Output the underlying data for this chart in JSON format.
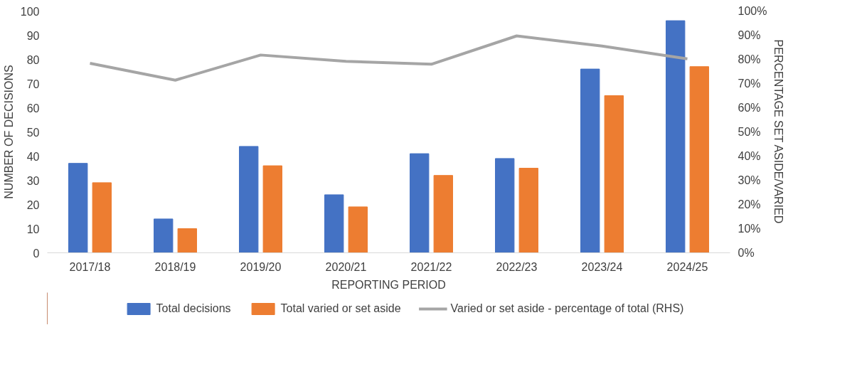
{
  "chart_data": {
    "type": "bar",
    "xlabel": "REPORTING PERIOD",
    "ylabel": "NUMBER OF DECISIONS",
    "y2label": "PERCENTAGE SET ASIDE/VARIED",
    "categories": [
      "2017/18",
      "2018/19",
      "2019/20",
      "2020/21",
      "2021/22",
      "2022/23",
      "2023/24",
      "2024/25"
    ],
    "series": [
      {
        "name": "Total decisions",
        "color": "#4472c4",
        "values": [
          37,
          14,
          44,
          24,
          41,
          39,
          76,
          96
        ]
      },
      {
        "name": "Total varied or set aside",
        "color": "#ed7d31",
        "values": [
          29,
          10,
          36,
          19,
          32,
          35,
          65,
          77
        ]
      },
      {
        "name": "Varied or set aside - percentage of total (RHS)",
        "type": "line",
        "axis": "y2",
        "color": "#a5a5a5",
        "values": [
          78.4,
          71.4,
          81.8,
          79.2,
          78.0,
          89.7,
          85.5,
          80.2
        ]
      }
    ],
    "ylim": [
      0,
      100
    ],
    "yticks": [
      0,
      10,
      20,
      30,
      40,
      50,
      60,
      70,
      80,
      90,
      100
    ],
    "y2lim": [
      0,
      100
    ],
    "y2ticks": [
      {
        "value": 0,
        "label": "0%"
      },
      {
        "value": 10,
        "label": "10%"
      },
      {
        "value": 20,
        "label": "20%"
      },
      {
        "value": 30,
        "label": "30%"
      },
      {
        "value": 40,
        "label": "40%"
      },
      {
        "value": 50,
        "label": "50%"
      },
      {
        "value": 60,
        "label": "60%"
      },
      {
        "value": 70,
        "label": "70%"
      },
      {
        "value": 80,
        "label": "80%"
      },
      {
        "value": 90,
        "label": "90%"
      },
      {
        "value": 100,
        "label": "100%"
      }
    ],
    "grid": false,
    "legend": "bottom",
    "marker": "none",
    "line_style": "solid"
  }
}
